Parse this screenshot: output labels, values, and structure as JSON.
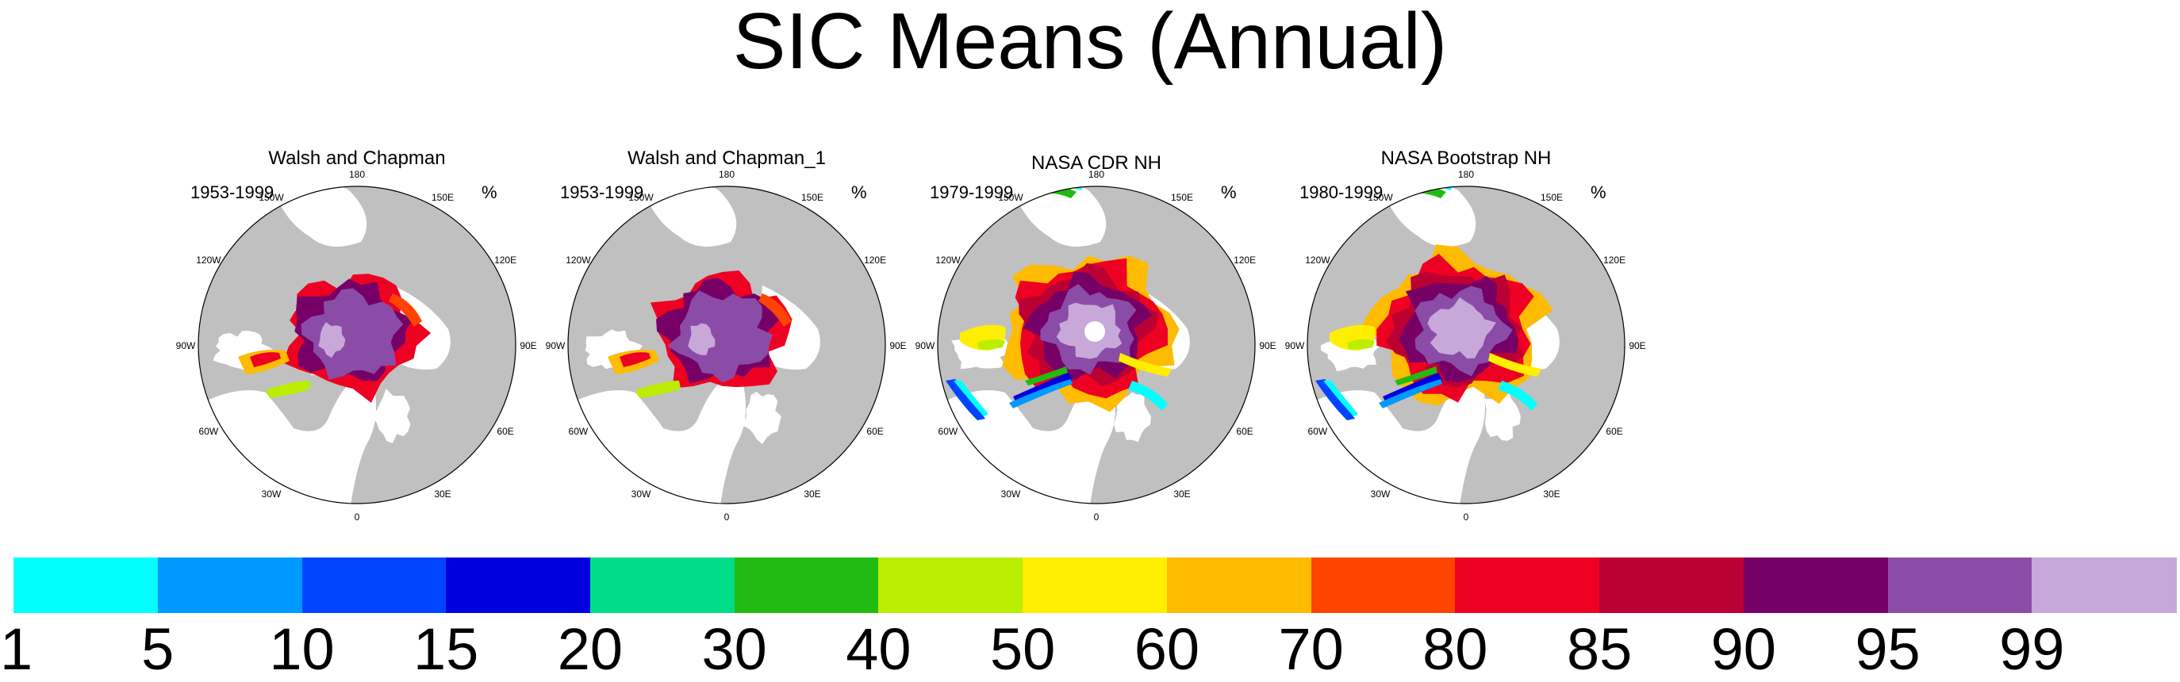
{
  "chart_data": {
    "type": "polar-map",
    "title": "SIC Means (Annual)",
    "panels": [
      {
        "name": "walsh-chapman",
        "title": "Walsh and Chapman",
        "period": "1953-1999",
        "unit": "%",
        "style": "walsh"
      },
      {
        "name": "walsh-chapman-1",
        "title": "Walsh and Chapman_1",
        "period": "1953-1999",
        "unit": "%",
        "style": "walsh"
      },
      {
        "name": "nasa-cdr-nh",
        "title": "NASA CDR NH",
        "period": "1979-1999",
        "unit": "%",
        "style": "nasa"
      },
      {
        "name": "nasa-bootstrap-nh",
        "title": "NASA Bootstrap NH",
        "period": "1980-1999",
        "unit": "%",
        "style": "bootstrap"
      }
    ],
    "lon_labels": [
      "180",
      "150E",
      "120E",
      "90E",
      "60E",
      "30E",
      "0",
      "30W",
      "60W",
      "90W",
      "120W",
      "150W"
    ],
    "colorbar": {
      "levels": [
        "1",
        "5",
        "10",
        "15",
        "20",
        "30",
        "40",
        "50",
        "60",
        "70",
        "80",
        "85",
        "90",
        "95",
        "99"
      ],
      "colors": [
        "#00ffff",
        "#0099ff",
        "#0044ff",
        "#0000dd",
        "#00dd88",
        "#22bb11",
        "#bbee00",
        "#ffee00",
        "#ffbb00",
        "#ff4400",
        "#ee0022",
        "#bb0033",
        "#770066",
        "#8b4ca8",
        "#c8a8d8"
      ]
    },
    "land_color": "#c0c0c0",
    "ocean_color": "#ffffff"
  }
}
